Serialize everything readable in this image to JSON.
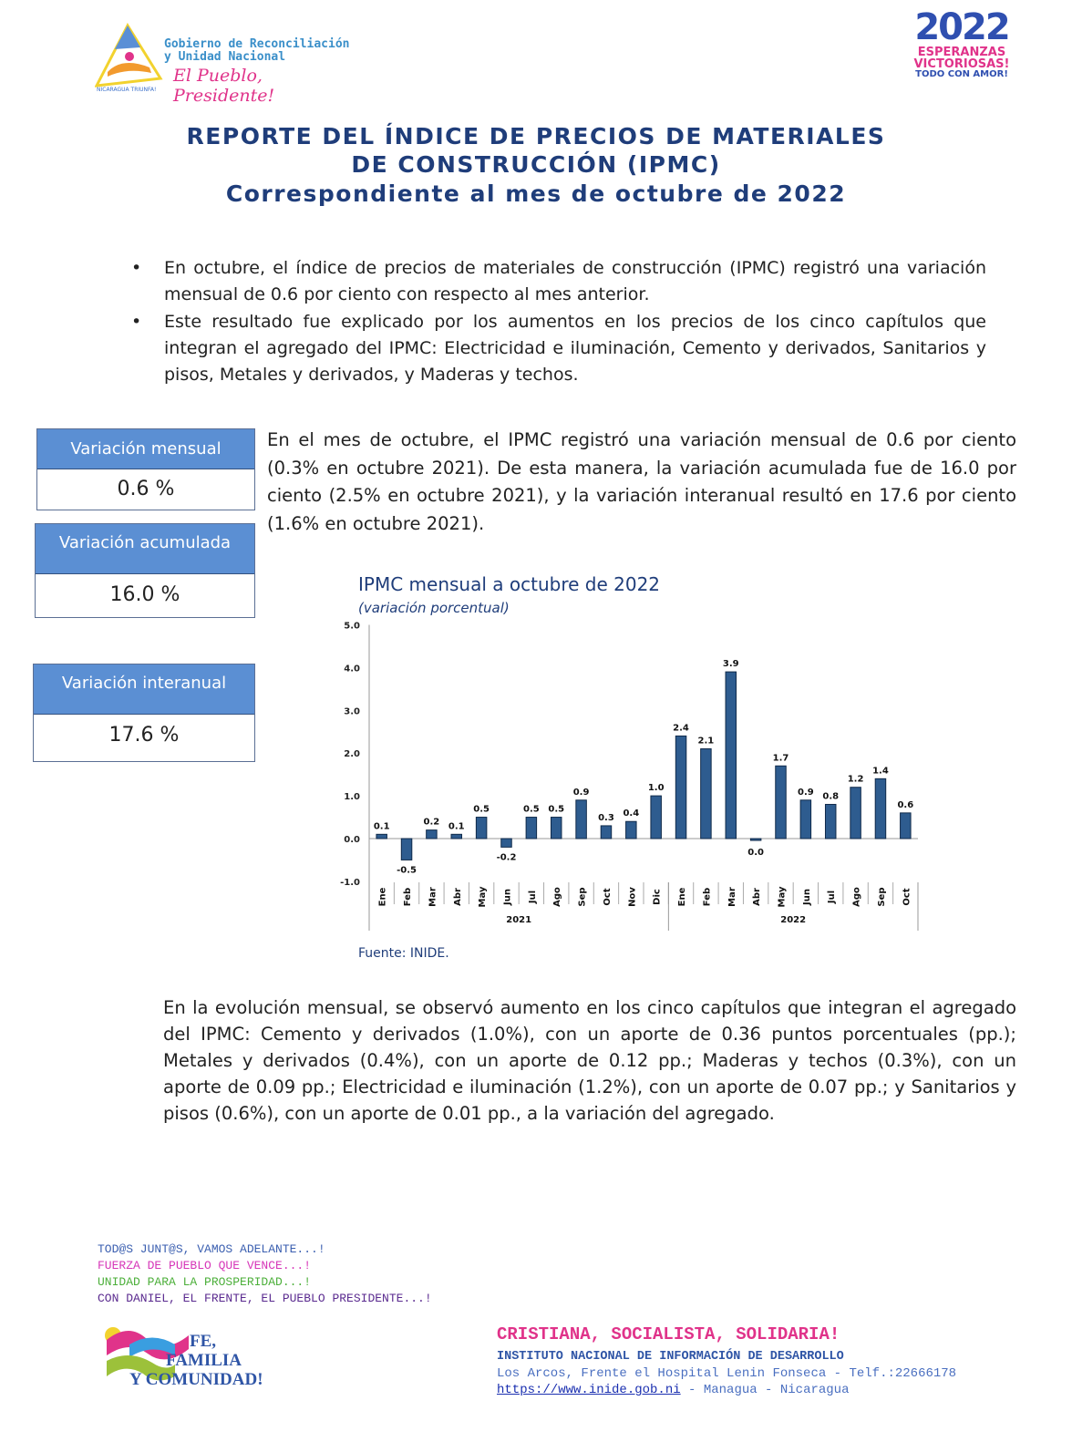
{
  "header": {
    "gov_line1": "Gobierno de Reconciliación",
    "gov_line2": "y Unidad Nacional",
    "slogan": "El Pueblo, Presidente!",
    "emblem_text": "NICARAGUA TRIUNFA!",
    "logo2022_year": "2022",
    "logo2022_line1": "ESPERANZAS",
    "logo2022_line2": "VICTORIOSAS!",
    "logo2022_line3": "TODO CON AMOR!"
  },
  "title": {
    "line1": "REPORTE DEL ÍNDICE DE PRECIOS DE MATERIALES",
    "line2": "DE CONSTRUCCIÓN (IPMC)",
    "line3": "Correspondiente al mes de octubre de 2022"
  },
  "bullets": [
    "En octubre, el índice de precios de materiales de construcción (IPMC) registró una variación mensual de 0.6 por ciento con respecto al mes anterior.",
    "Este resultado fue explicado por los aumentos en los precios de los cinco capítulos que integran el agregado del IPMC: Electricidad e iluminación, Cemento y derivados, Sanitarios y pisos, Metales y derivados, y Maderas y techos."
  ],
  "boxes": [
    {
      "label": "Variación mensual",
      "value": "0.6 %"
    },
    {
      "label": "Variación acumulada",
      "value": "16.0 %"
    },
    {
      "label": "Variación interanual",
      "value": "17.6 %"
    }
  ],
  "paragraph1": "En el mes de octubre, el IPMC registró una variación mensual de 0.6 por ciento (0.3% en octubre 2021). De esta manera, la variación acumulada fue de 16.0 por ciento (2.5% en octubre 2021), y la variación interanual resultó en 17.6 por ciento (1.6% en octubre 2021).",
  "chart_data": {
    "type": "bar",
    "title": "IPMC mensual a octubre de 2022",
    "subtitle": "(variación porcentual)",
    "categories": [
      "Ene",
      "Feb",
      "Mar",
      "Abr",
      "May",
      "Jun",
      "Jul",
      "Ago",
      "Sep",
      "Oct",
      "Nov",
      "Dic",
      "Ene",
      "Feb",
      "Mar",
      "Abr",
      "May",
      "Jun",
      "Jul",
      "Ago",
      "Sep",
      "Oct"
    ],
    "groups": [
      {
        "label": "2021",
        "count": 12
      },
      {
        "label": "2022",
        "count": 10
      }
    ],
    "values": [
      0.1,
      -0.5,
      0.2,
      0.1,
      0.5,
      -0.2,
      0.5,
      0.5,
      0.9,
      0.3,
      0.4,
      1.0,
      2.4,
      2.1,
      3.9,
      0.0,
      1.7,
      0.9,
      0.8,
      1.2,
      1.4,
      0.6
    ],
    "labels": [
      "0.1",
      "-0.5",
      "0.2",
      "0.1",
      "0.5",
      "-0.2",
      "0.5",
      "0.5",
      "0.9",
      "0.3",
      "0.4",
      "1.0",
      "2.4",
      "2.1",
      "3.9",
      "0.0",
      "1.7",
      "0.9",
      "0.8",
      "1.2",
      "1.4",
      "0.6"
    ],
    "yticks": [
      "5.0",
      "4.0",
      "3.0",
      "2.0",
      "1.0",
      "0.0",
      "-1.0"
    ],
    "ylim": [
      -1,
      5
    ],
    "bar_color": "#2e5c8f",
    "source": "Fuente: INIDE."
  },
  "paragraph2": "En la evolución mensual, se observó aumento en los cinco capítulos que integran el agregado del IPMC: Cemento y derivados (1.0%), con un aporte de 0.36 puntos porcentuales (pp.); Metales y derivados (0.4%), con un aporte de 0.12 pp.; Maderas y techos (0.3%), con un aporte de 0.09 pp.; Electricidad e iluminación (1.2%), con un aporte de 0.07 pp.; y Sanitarios y pisos (0.6%), con un aporte de 0.01 pp., a la variación del agregado.",
  "footer": {
    "mottos": [
      "TOD@S JUNT@S, VAMOS ADELANTE...!",
      "FUERZA DE PUEBLO QUE VENCE...!",
      "UNIDAD PARA LA PROSPERIDAD...!",
      "CON DANIEL, EL FRENTE, EL PUEBLO PRESIDENTE...!"
    ],
    "motto_colors": [
      "#3b5fb0",
      "#d636b8",
      "#4caf3a",
      "#5a2a8f"
    ],
    "logo_text": [
      "FE,",
      "FAMILIA",
      "Y COMUNIDAD!"
    ],
    "slogan": "CRISTIANA, SOCIALISTA, SOLIDARIA!",
    "institute": "INSTITUTO NACIONAL DE INFORMACIÓN DE DESARROLLO",
    "address": "Los Arcos, Frente el Hospital Lenin Fonseca - Telf.:22666178",
    "link": "https://www.inide.gob.ni",
    "location": " - Managua - Nicaragua"
  }
}
